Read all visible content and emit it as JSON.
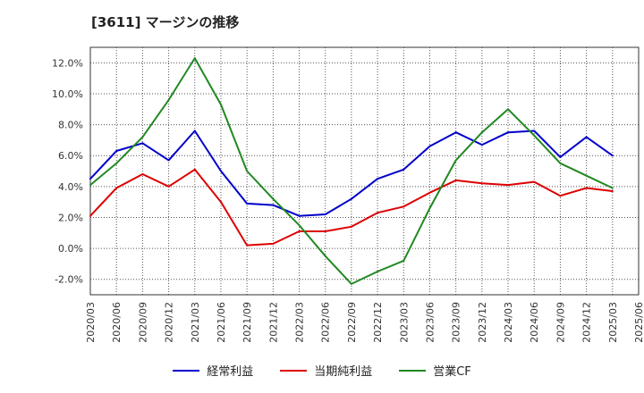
{
  "chart_data": {
    "type": "line",
    "title": "[3611]  マージンの推移",
    "x": [
      "2020/03",
      "2020/06",
      "2020/09",
      "2020/12",
      "2021/03",
      "2021/06",
      "2021/09",
      "2021/12",
      "2022/03",
      "2022/06",
      "2022/09",
      "2022/12",
      "2023/03",
      "2023/06",
      "2023/09",
      "2023/12",
      "2024/03",
      "2024/06",
      "2024/09",
      "2024/12",
      "2025/03",
      "2025/06"
    ],
    "ylim": [
      -3.0,
      13.0
    ],
    "yticks": [
      -2.0,
      0.0,
      2.0,
      4.0,
      6.0,
      8.0,
      10.0,
      12.0
    ],
    "ytick_labels": [
      "-2.0%",
      "0.0%",
      "2.0%",
      "4.0%",
      "6.0%",
      "8.0%",
      "10.0%",
      "12.0%"
    ],
    "grid": true,
    "legend_position": "bottom",
    "series": [
      {
        "name": "経常利益",
        "color": "#0000cc",
        "values": [
          4.5,
          6.3,
          6.8,
          5.7,
          7.6,
          5.0,
          2.9,
          2.8,
          2.1,
          2.2,
          3.2,
          4.5,
          5.1,
          6.6,
          7.5,
          6.7,
          7.5,
          7.6,
          5.9,
          7.2,
          6.0,
          null
        ]
      },
      {
        "name": "当期純利益",
        "color": "#dd0000",
        "values": [
          2.1,
          3.9,
          4.8,
          4.0,
          5.1,
          3.0,
          0.2,
          0.3,
          1.1,
          1.1,
          1.4,
          2.3,
          2.7,
          3.6,
          4.4,
          4.2,
          4.1,
          4.3,
          3.4,
          3.9,
          3.7,
          null
        ]
      },
      {
        "name": "営業CF",
        "color": "#228822",
        "values": [
          4.1,
          5.5,
          7.2,
          9.6,
          12.3,
          9.3,
          5.0,
          3.2,
          1.5,
          -0.5,
          -2.3,
          -1.5,
          -0.8,
          2.6,
          5.7,
          7.5,
          9.0,
          7.3,
          5.5,
          4.7,
          3.9,
          null
        ]
      }
    ]
  }
}
